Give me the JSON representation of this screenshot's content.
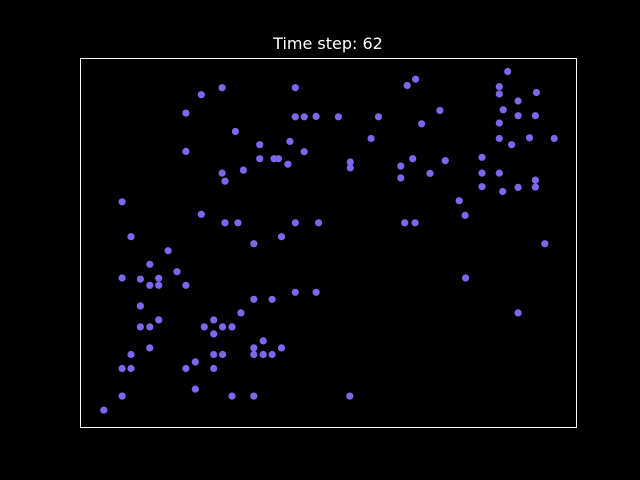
{
  "chart_data": {
    "type": "scatter",
    "title": "Time step: 62",
    "xlabel": "",
    "ylabel": "",
    "xlim": [
      0,
      1
    ],
    "ylim": [
      0,
      1
    ],
    "grid": false,
    "point_color": "#7b68ee",
    "frame_color": "#ffffff",
    "background": "#000000",
    "series": [
      {
        "points": [
          [
            0.046,
            0.046
          ],
          [
            0.083,
            0.084
          ],
          [
            0.083,
            0.159
          ],
          [
            0.101,
            0.159
          ],
          [
            0.101,
            0.197
          ],
          [
            0.083,
            0.612
          ],
          [
            0.101,
            0.517
          ],
          [
            0.083,
            0.405
          ],
          [
            0.139,
            0.442
          ],
          [
            0.176,
            0.479
          ],
          [
            0.139,
            0.385
          ],
          [
            0.139,
            0.272
          ],
          [
            0.139,
            0.215
          ],
          [
            0.12,
            0.402
          ],
          [
            0.157,
            0.404
          ],
          [
            0.157,
            0.385
          ],
          [
            0.12,
            0.329
          ],
          [
            0.12,
            0.272
          ],
          [
            0.157,
            0.291
          ],
          [
            0.212,
            0.385
          ],
          [
            0.194,
            0.422
          ],
          [
            0.212,
            0.159
          ],
          [
            0.231,
            0.177
          ],
          [
            0.231,
            0.103
          ],
          [
            0.249,
            0.272
          ],
          [
            0.268,
            0.253
          ],
          [
            0.268,
            0.291
          ],
          [
            0.268,
            0.197
          ],
          [
            0.268,
            0.159
          ],
          [
            0.286,
            0.272
          ],
          [
            0.286,
            0.197
          ],
          [
            0.305,
            0.272
          ],
          [
            0.323,
            0.31
          ],
          [
            0.349,
            0.347
          ],
          [
            0.349,
            0.197
          ],
          [
            0.349,
            0.215
          ],
          [
            0.368,
            0.234
          ],
          [
            0.368,
            0.197
          ],
          [
            0.386,
            0.347
          ],
          [
            0.386,
            0.197
          ],
          [
            0.405,
            0.215
          ],
          [
            0.305,
            0.084
          ],
          [
            0.349,
            0.084
          ],
          [
            0.543,
            0.084
          ],
          [
            0.349,
            0.498
          ],
          [
            0.405,
            0.517
          ],
          [
            0.433,
            0.366
          ],
          [
            0.433,
            0.555
          ],
          [
            0.291,
            0.555
          ],
          [
            0.317,
            0.555
          ],
          [
            0.243,
            0.578
          ],
          [
            0.361,
            0.767
          ],
          [
            0.328,
            0.698
          ],
          [
            0.243,
            0.903
          ],
          [
            0.212,
            0.853
          ],
          [
            0.212,
            0.749
          ],
          [
            0.285,
            0.922
          ],
          [
            0.291,
            0.668
          ],
          [
            0.285,
            0.69
          ],
          [
            0.312,
            0.803
          ],
          [
            0.361,
            0.729
          ],
          [
            0.39,
            0.729
          ],
          [
            0.422,
            0.776
          ],
          [
            0.399,
            0.729
          ],
          [
            0.418,
            0.714
          ],
          [
            0.433,
            0.843
          ],
          [
            0.433,
            0.922
          ],
          [
            0.451,
            0.843
          ],
          [
            0.451,
            0.748
          ],
          [
            0.52,
            0.843
          ],
          [
            0.544,
            0.704
          ],
          [
            0.544,
            0.72
          ],
          [
            0.586,
            0.784
          ],
          [
            0.601,
            0.843
          ],
          [
            0.646,
            0.709
          ],
          [
            0.646,
            0.677
          ],
          [
            0.67,
            0.729
          ],
          [
            0.659,
            0.928
          ],
          [
            0.676,
            0.945
          ],
          [
            0.688,
            0.824
          ],
          [
            0.705,
            0.689
          ],
          [
            0.725,
            0.86
          ],
          [
            0.736,
            0.724
          ],
          [
            0.764,
            0.615
          ],
          [
            0.776,
            0.575
          ],
          [
            0.654,
            0.555
          ],
          [
            0.675,
            0.555
          ],
          [
            0.48,
            0.555
          ],
          [
            0.81,
            0.653
          ],
          [
            0.81,
            0.69
          ],
          [
            0.81,
            0.733
          ],
          [
            0.845,
            0.69
          ],
          [
            0.845,
            0.784
          ],
          [
            0.845,
            0.826
          ],
          [
            0.852,
            0.64
          ],
          [
            0.853,
            0.862
          ],
          [
            0.845,
            0.905
          ],
          [
            0.845,
            0.925
          ],
          [
            0.862,
            0.966
          ],
          [
            0.87,
            0.767
          ],
          [
            0.883,
            0.886
          ],
          [
            0.883,
            0.846
          ],
          [
            0.906,
            0.786
          ],
          [
            0.92,
            0.909
          ],
          [
            0.918,
            0.846
          ],
          [
            0.918,
            0.671
          ],
          [
            0.918,
            0.652
          ],
          [
            0.956,
            0.784
          ],
          [
            0.937,
            0.498
          ],
          [
            0.883,
            0.31
          ],
          [
            0.883,
            0.651
          ],
          [
            0.777,
            0.405
          ],
          [
            0.475,
            0.366
          ],
          [
            0.475,
            0.844
          ]
        ]
      }
    ]
  }
}
